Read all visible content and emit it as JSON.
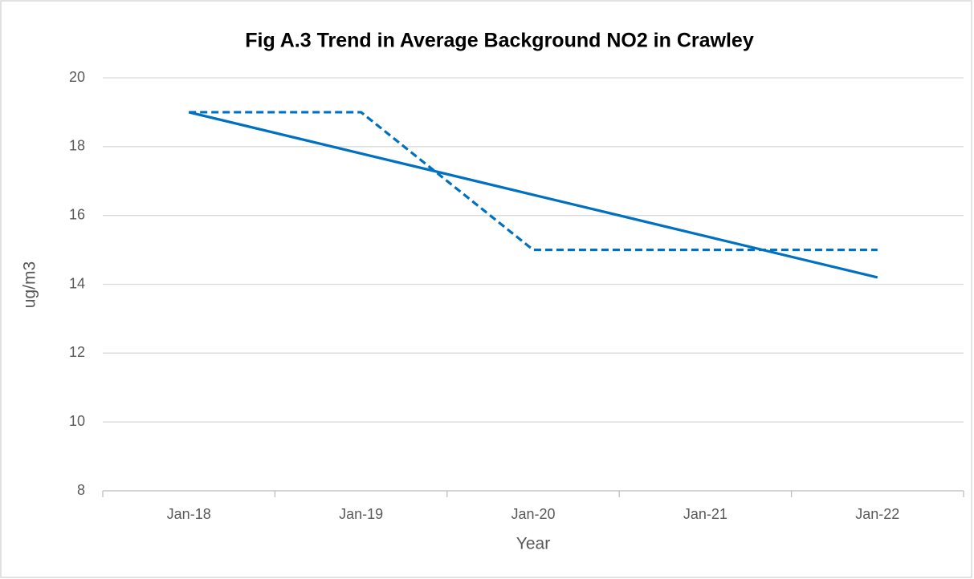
{
  "chart_data": {
    "type": "line",
    "title": "Fig A.3 Trend in Average Background NO2 in Crawley",
    "xlabel": "Year",
    "ylabel": "ug/m3",
    "categories": [
      "Jan-18",
      "Jan-19",
      "Jan-20",
      "Jan-21",
      "Jan-22"
    ],
    "series": [
      {
        "color": "#0070c0",
        "dash": "dashed",
        "values": [
          19,
          19,
          15,
          15,
          15
        ]
      },
      {
        "color": "#0070c0",
        "dash": "solid",
        "values": [
          19,
          17.8,
          16.6,
          15.4,
          14.2
        ]
      }
    ],
    "ylim": [
      8,
      20
    ],
    "yticks": [
      8,
      10,
      12,
      14,
      16,
      18,
      20
    ],
    "grid": true
  }
}
